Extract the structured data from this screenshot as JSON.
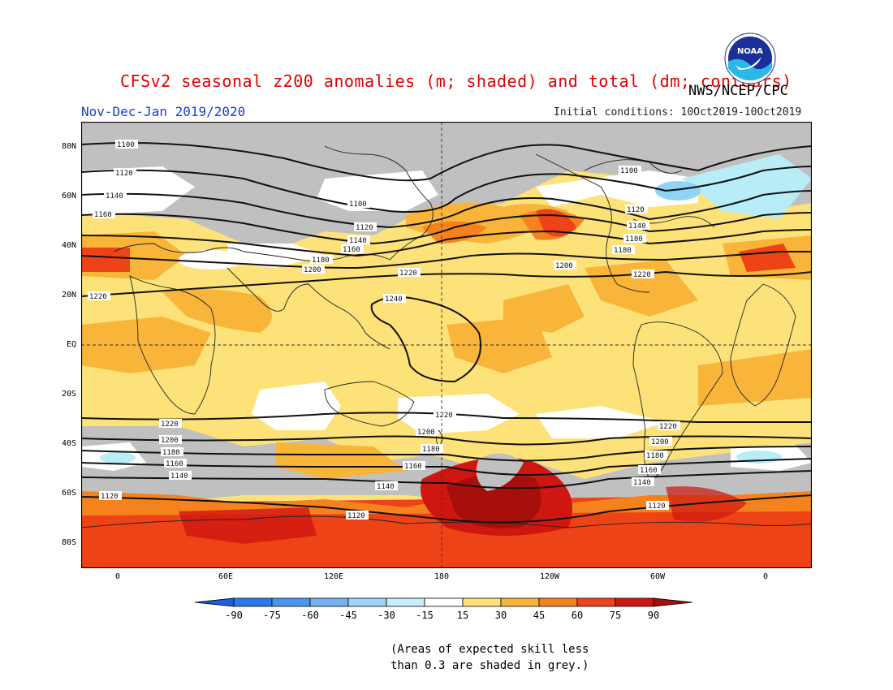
{
  "header": {
    "title": "CFSv2 seasonal z200 anomalies (m; shaded) and total (dm; contours)",
    "season": "Nov-Dec-Jan 2019/2020",
    "initial_conditions": "Initial conditions: 10Oct2019-10Oct2019",
    "agency": "NWS/NCEP/CPC",
    "logo_text": "NOAA"
  },
  "map": {
    "lat_labels": [
      "80N",
      "60N",
      "40N",
      "20N",
      "EQ",
      "20S",
      "40S",
      "60S",
      "80S"
    ],
    "lon_labels": [
      "0",
      "60E",
      "120E",
      "180",
      "120W",
      "60W",
      "0"
    ],
    "contour_labels": [
      "1100",
      "1120",
      "1140",
      "1160",
      "1180",
      "1200",
      "1220",
      "1240"
    ],
    "colors": {
      "grey_low_skill": "#c0c0c0",
      "a15_30": "#fde27a",
      "a30_45": "#f9b43a",
      "a45_60": "#f6821e",
      "a60_75": "#ee4316",
      "a75_90": "#cf1610",
      "a90": "#a60f0c",
      "n15_30": "#b8ecf7",
      "n30_45": "#8fd3f5"
    }
  },
  "colorbar": {
    "labels": [
      "-90",
      "-75",
      "-60",
      "-45",
      "-30",
      "-15",
      "15",
      "30",
      "45",
      "60",
      "75",
      "90"
    ],
    "colors": [
      "#1f5fe0",
      "#2c78e8",
      "#4b95ef",
      "#74b2f4",
      "#a1d2f7",
      "#c8eef9",
      "#ffffff",
      "#fde27a",
      "#f9b43a",
      "#f6821e",
      "#ee4316",
      "#cf1610",
      "#a60f0c"
    ]
  },
  "note": {
    "line1": "(Areas of expected skill less",
    "line2": "than 0.3 are shaded in grey.)"
  }
}
